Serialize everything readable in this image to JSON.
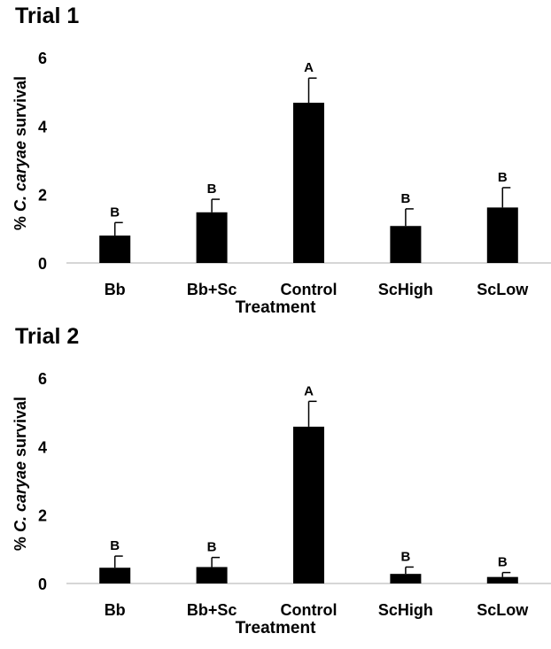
{
  "chart_data": [
    {
      "type": "bar",
      "title": "Trial 1",
      "ylabel_prefix": "% ",
      "ylabel_italic": "C. caryae",
      "ylabel_suffix": " survival",
      "xlabel": "Treatment",
      "categories": [
        "Bb",
        "Bb+Sc",
        "Control",
        "ScHigh",
        "ScLow"
      ],
      "values": [
        0.8,
        1.48,
        4.68,
        1.08,
        1.62
      ],
      "errors": [
        0.38,
        0.38,
        0.72,
        0.5,
        0.58
      ],
      "letters": [
        "B",
        "B",
        "A",
        "B",
        "B"
      ],
      "ylim": [
        0,
        6
      ],
      "yticks": [
        "0",
        "2",
        "4",
        "6"
      ],
      "grid": false,
      "bar_color": "#000000"
    },
    {
      "type": "bar",
      "title": "Trial 2",
      "ylabel_prefix": "% ",
      "ylabel_italic": "C. caryae",
      "ylabel_suffix": " survival",
      "xlabel": "Treatment",
      "categories": [
        "Bb",
        "Bb+Sc",
        "Control",
        "ScHigh",
        "ScLow"
      ],
      "values": [
        0.46,
        0.48,
        4.58,
        0.28,
        0.19
      ],
      "errors": [
        0.34,
        0.28,
        0.74,
        0.2,
        0.13
      ],
      "letters": [
        "B",
        "B",
        "A",
        "B",
        "B"
      ],
      "ylim": [
        0,
        6
      ],
      "yticks": [
        "0",
        "2",
        "4",
        "6"
      ],
      "grid": false,
      "bar_color": "#000000"
    }
  ]
}
